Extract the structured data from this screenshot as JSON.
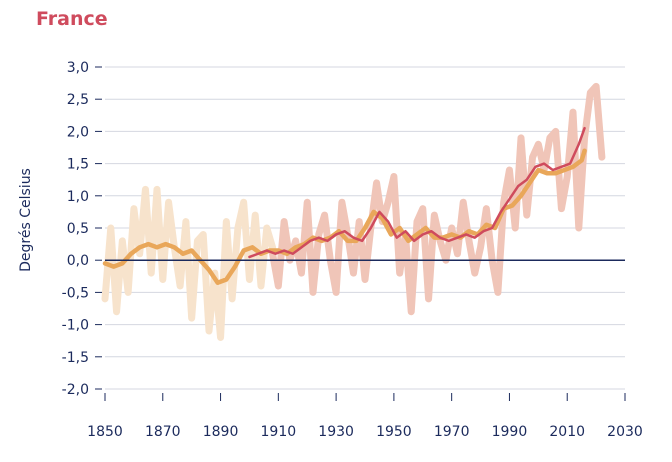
{
  "chart_data": {
    "type": "line",
    "title": "France",
    "ylabel": "Degrés Celsius",
    "xlabel": "",
    "xlim": [
      1850,
      2030
    ],
    "ylim": [
      -2.0,
      3.0
    ],
    "x_ticks": [
      1850,
      1870,
      1890,
      1910,
      1930,
      1950,
      1970,
      1990,
      2010,
      2030
    ],
    "y_ticks": [
      "3,0",
      "2,5",
      "2,0",
      "1,5",
      "1,0",
      "0,5",
      "0,0",
      "-0,5",
      "-1,0",
      "-1,5",
      "-2,0"
    ],
    "y_tick_values": [
      3.0,
      2.5,
      2.0,
      1.5,
      1.0,
      0.5,
      0.0,
      -0.5,
      -1.0,
      -1.5,
      -2.0
    ],
    "zero_line": 0.0,
    "series": [
      {
        "color": "#f7e3cc",
        "role": "annual-light",
        "x": [
          1850,
          1852,
          1854,
          1856,
          1858,
          1860,
          1862,
          1864,
          1866,
          1868,
          1870,
          1872,
          1874,
          1876,
          1878,
          1880,
          1882,
          1884,
          1886,
          1888,
          1890,
          1892,
          1894,
          1896,
          1898,
          1900,
          1902,
          1904,
          1906,
          1908
        ],
        "y": [
          -0.6,
          0.5,
          -0.8,
          0.3,
          -0.5,
          0.8,
          0.1,
          1.1,
          -0.2,
          1.1,
          -0.3,
          0.9,
          0.2,
          -0.4,
          0.6,
          -0.9,
          0.3,
          0.4,
          -1.1,
          -0.2,
          -1.2,
          0.6,
          -0.6,
          0.5,
          0.9,
          -0.3,
          0.7,
          -0.4,
          0.5,
          0.2
        ]
      },
      {
        "color": "#f0c5b8",
        "role": "annual-pink",
        "x": [
          1908,
          1910,
          1912,
          1914,
          1916,
          1918,
          1920,
          1922,
          1924,
          1926,
          1928,
          1930,
          1932,
          1934,
          1936,
          1938,
          1940,
          1942,
          1944,
          1946,
          1948,
          1950,
          1952,
          1954,
          1956,
          1958,
          1960,
          1962,
          1964,
          1966,
          1968,
          1970,
          1972,
          1974,
          1976,
          1978,
          1980,
          1982,
          1984,
          1986,
          1988,
          1990,
          1992,
          1994,
          1996,
          1998,
          2000,
          2002,
          2004,
          2006,
          2008,
          2010,
          2012,
          2014,
          2016,
          2018,
          2020,
          2022
        ],
        "y": [
          0.1,
          -0.4,
          0.6,
          0.0,
          0.3,
          -0.2,
          0.9,
          -0.5,
          0.4,
          0.7,
          0.0,
          -0.5,
          0.9,
          0.4,
          -0.2,
          0.6,
          -0.3,
          0.5,
          1.2,
          0.6,
          0.9,
          1.3,
          -0.2,
          0.4,
          -0.8,
          0.6,
          0.8,
          -0.6,
          0.7,
          0.3,
          0.0,
          0.5,
          0.1,
          0.9,
          0.3,
          -0.2,
          0.2,
          0.8,
          0.0,
          -0.5,
          0.9,
          1.4,
          0.5,
          1.9,
          0.7,
          1.6,
          1.8,
          1.4,
          1.9,
          2.0,
          0.8,
          1.3,
          2.3,
          0.5,
          1.9,
          2.6,
          2.7,
          1.6
        ]
      },
      {
        "color": "#e9a75a",
        "role": "smoothed-orange",
        "x": [
          1850,
          1853,
          1856,
          1859,
          1862,
          1865,
          1868,
          1871,
          1874,
          1877,
          1880,
          1883,
          1886,
          1889,
          1892,
          1895,
          1898,
          1901,
          1904,
          1907,
          1910,
          1913,
          1916,
          1919,
          1922,
          1925,
          1928,
          1931,
          1934,
          1937,
          1940,
          1943,
          1946,
          1949,
          1952,
          1955,
          1958,
          1961,
          1964,
          1967,
          1970,
          1973,
          1976,
          1979,
          1982,
          1985,
          1988,
          1991,
          1994,
          1997,
          2000,
          2003,
          2006,
          2009,
          2012,
          2015,
          2016
        ],
        "y": [
          -0.05,
          -0.1,
          -0.05,
          0.1,
          0.2,
          0.25,
          0.2,
          0.25,
          0.2,
          0.1,
          0.15,
          0.0,
          -0.15,
          -0.35,
          -0.3,
          -0.1,
          0.15,
          0.2,
          0.1,
          0.15,
          0.15,
          0.1,
          0.2,
          0.25,
          0.35,
          0.3,
          0.35,
          0.45,
          0.3,
          0.3,
          0.5,
          0.75,
          0.65,
          0.4,
          0.5,
          0.3,
          0.4,
          0.5,
          0.35,
          0.35,
          0.4,
          0.35,
          0.45,
          0.4,
          0.55,
          0.5,
          0.8,
          0.85,
          1.0,
          1.2,
          1.4,
          1.35,
          1.35,
          1.4,
          1.45,
          1.55,
          1.7
        ]
      },
      {
        "color": "#cf4b5d",
        "role": "smoothed-red",
        "x": [
          1900,
          1903,
          1906,
          1909,
          1912,
          1915,
          1918,
          1921,
          1924,
          1927,
          1930,
          1933,
          1936,
          1939,
          1942,
          1945,
          1948,
          1951,
          1954,
          1957,
          1960,
          1963,
          1966,
          1969,
          1972,
          1975,
          1978,
          1981,
          1984,
          1987,
          1990,
          1993,
          1996,
          1999,
          2002,
          2005,
          2008,
          2011,
          2014,
          2016
        ],
        "y": [
          0.05,
          0.1,
          0.15,
          0.1,
          0.15,
          0.1,
          0.2,
          0.3,
          0.35,
          0.3,
          0.4,
          0.45,
          0.35,
          0.3,
          0.5,
          0.75,
          0.6,
          0.35,
          0.45,
          0.3,
          0.4,
          0.45,
          0.35,
          0.3,
          0.35,
          0.4,
          0.35,
          0.45,
          0.5,
          0.75,
          0.95,
          1.15,
          1.25,
          1.45,
          1.5,
          1.4,
          1.45,
          1.5,
          1.8,
          2.05
        ]
      }
    ]
  }
}
